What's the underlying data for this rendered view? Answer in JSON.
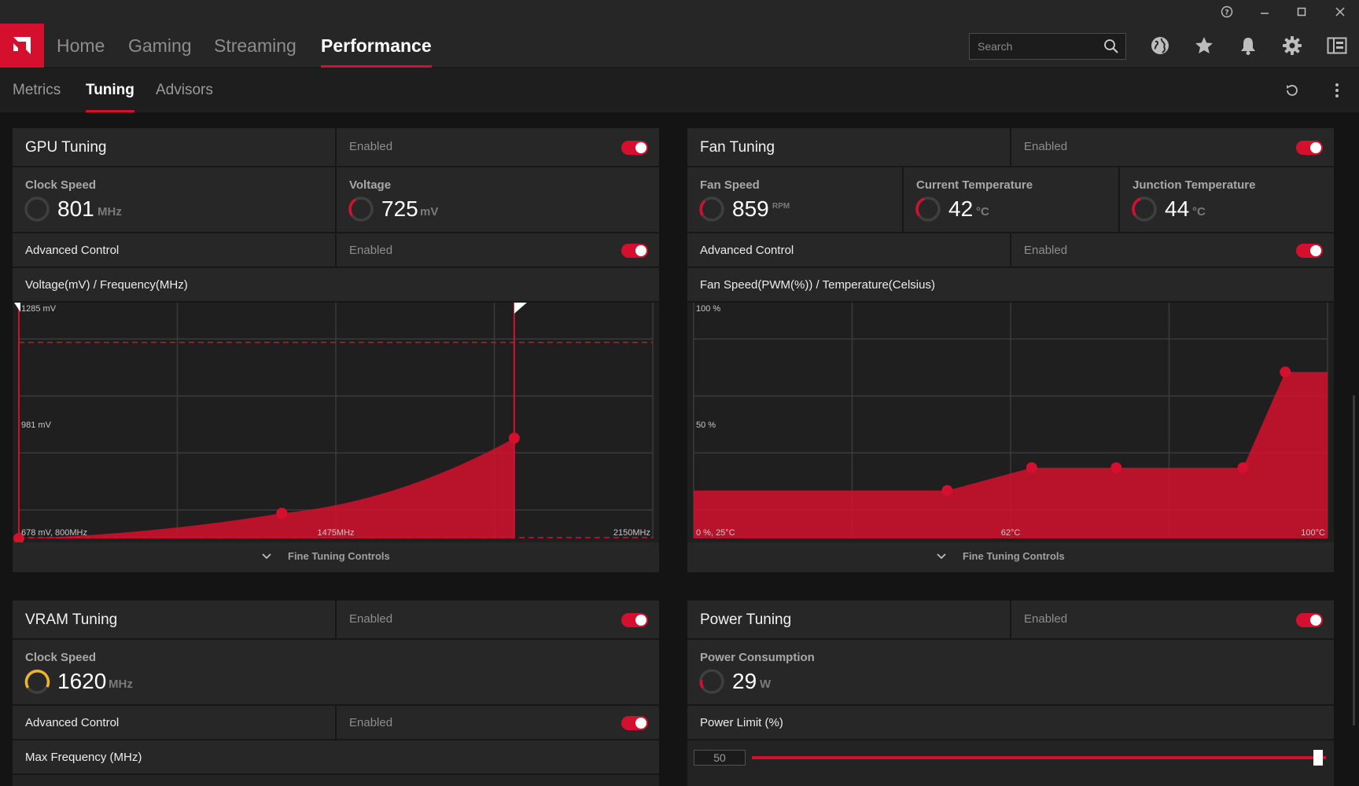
{
  "nav": {
    "tabs": [
      "Home",
      "Gaming",
      "Streaming",
      "Performance"
    ],
    "active": "Performance",
    "search_placeholder": "Search"
  },
  "subnav": {
    "tabs": [
      "Metrics",
      "Tuning",
      "Advisors"
    ],
    "active": "Tuning"
  },
  "gpu": {
    "title": "GPU Tuning",
    "state": "Enabled",
    "clock_label": "Clock Speed",
    "clock_value": "801",
    "clock_unit": "MHz",
    "voltage_label": "Voltage",
    "voltage_value": "725",
    "voltage_unit": "mV",
    "advanced_label": "Advanced Control",
    "advanced_state": "Enabled",
    "chart_title": "Voltage(mV) / Frequency(MHz)",
    "fine_tuning": "Fine Tuning Controls"
  },
  "fan": {
    "title": "Fan Tuning",
    "state": "Enabled",
    "speed_label": "Fan Speed",
    "speed_value": "859",
    "speed_unit": "RPM",
    "temp_label": "Current Temperature",
    "temp_value": "42",
    "temp_unit": "°C",
    "junction_label": "Junction Temperature",
    "junction_value": "44",
    "junction_unit": "°C",
    "advanced_label": "Advanced Control",
    "advanced_state": "Enabled",
    "chart_title": "Fan Speed(PWM(%)) / Temperature(Celsius)",
    "fine_tuning": "Fine Tuning Controls"
  },
  "vram": {
    "title": "VRAM Tuning",
    "state": "Enabled",
    "clock_label": "Clock Speed",
    "clock_value": "1620",
    "clock_unit": "MHz",
    "advanced_label": "Advanced Control",
    "advanced_state": "Enabled",
    "max_freq_label": "Max Frequency (MHz)"
  },
  "power": {
    "title": "Power Tuning",
    "state": "Enabled",
    "consumption_label": "Power Consumption",
    "consumption_value": "29",
    "consumption_unit": "W",
    "limit_label": "Power Limit (%)",
    "limit_value": "50"
  },
  "colors": {
    "accent": "#d5102e",
    "panel": "#232323",
    "gauge_yellow": "#f0b429"
  },
  "chart_data": [
    {
      "type": "area",
      "title": "Voltage(mV) / Frequency(MHz)",
      "x_unit": "MHz",
      "y_unit": "mV",
      "labels": {
        "top": "1285 mV",
        "mid": "981 mV",
        "origin": "678 mV, 800MHz",
        "x_mid": "1475MHz",
        "x_max": "2150MHz"
      },
      "xlim": [
        800,
        2150
      ],
      "ylim": [
        678,
        1285
      ],
      "points": [
        [
          800,
          678
        ],
        [
          1360,
          745
        ],
        [
          1855,
          945
        ]
      ],
      "max_frequency_marker": 1855,
      "voltage_limit_upper": 1200,
      "voltage_limit_lower": 680,
      "grid": true
    },
    {
      "type": "area",
      "title": "Fan Speed(PWM(%)) / Temperature(Celsius)",
      "x_unit": "°C",
      "y_unit": "%",
      "labels": {
        "top": "100 %",
        "mid": "50 %",
        "origin": "0 %, 25°C",
        "x_mid": "62°C",
        "x_max": "100°C"
      },
      "xlim": [
        25,
        100
      ],
      "ylim": [
        0,
        100
      ],
      "points": [
        [
          25,
          21
        ],
        [
          55,
          21
        ],
        [
          65,
          31
        ],
        [
          75,
          31
        ],
        [
          90,
          31
        ],
        [
          95,
          73
        ],
        [
          100,
          73
        ]
      ],
      "marked_points": [
        [
          55,
          21
        ],
        [
          65,
          31
        ],
        [
          75,
          31
        ],
        [
          90,
          31
        ],
        [
          95,
          73
        ]
      ],
      "grid": true
    }
  ]
}
